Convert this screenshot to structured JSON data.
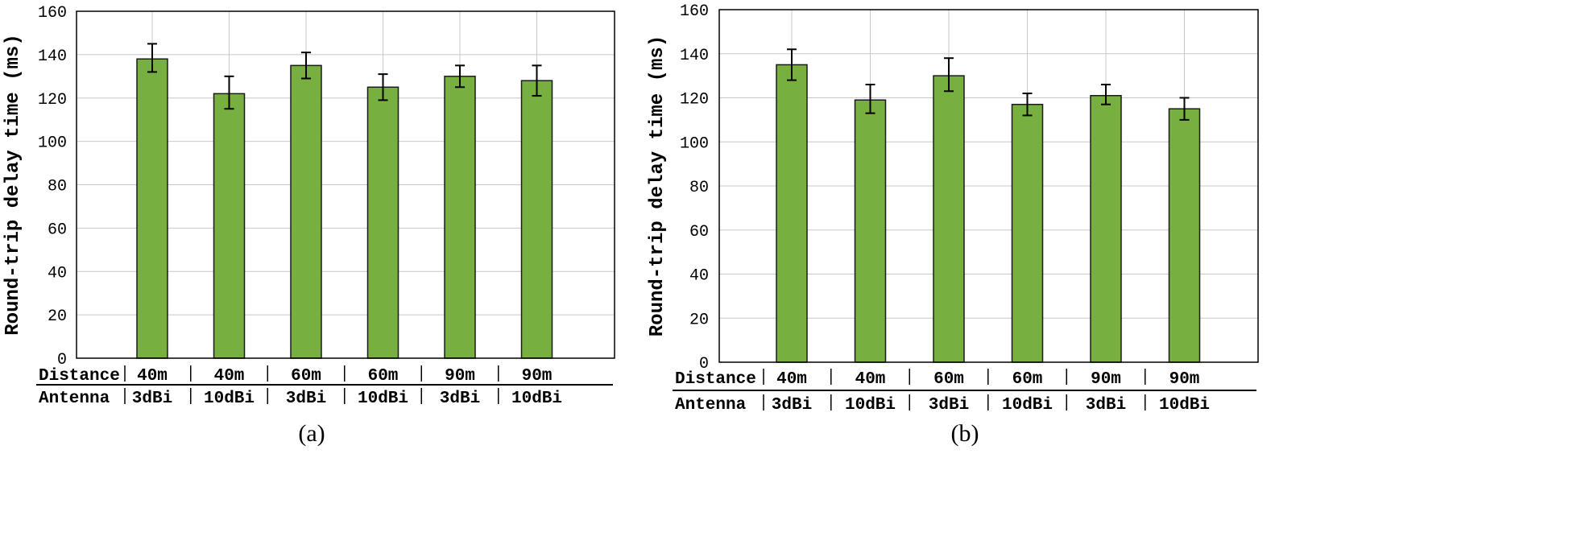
{
  "chart_data": [
    {
      "type": "bar",
      "caption": "(a)",
      "ylabel": "Round-trip delay time (ms)",
      "ylim": [
        0,
        160
      ],
      "yticks": [
        "0",
        "20",
        "40",
        "60",
        "80",
        "100",
        "120",
        "140",
        "160"
      ],
      "row_labels": [
        "Distance",
        "Antenna"
      ],
      "distance": [
        "40m",
        "40m",
        "60m",
        "60m",
        "90m",
        "90m"
      ],
      "antenna": [
        "3dBi",
        "10dBi",
        "3dBi",
        "10dBi",
        "3dBi",
        "10dBi"
      ],
      "values": [
        138,
        122,
        135,
        125,
        130,
        128
      ],
      "err_low": [
        132,
        115,
        129,
        119,
        125,
        121
      ],
      "err_high": [
        145,
        130,
        141,
        131,
        135,
        135
      ],
      "bar_color": "#77b041"
    },
    {
      "type": "bar",
      "caption": "(b)",
      "ylabel": "Round-trip delay time (ms)",
      "ylim": [
        0,
        160
      ],
      "yticks": [
        "0",
        "20",
        "40",
        "60",
        "80",
        "100",
        "120",
        "140",
        "160"
      ],
      "row_labels": [
        "Distance",
        "Antenna"
      ],
      "distance": [
        "40m",
        "40m",
        "60m",
        "60m",
        "90m",
        "90m"
      ],
      "antenna": [
        "3dBi",
        "10dBi",
        "3dBi",
        "10dBi",
        "3dBi",
        "10dBi"
      ],
      "values": [
        135,
        119,
        130,
        117,
        121,
        115
      ],
      "err_low": [
        128,
        113,
        123,
        112,
        117,
        110
      ],
      "err_high": [
        142,
        126,
        138,
        122,
        126,
        120
      ],
      "bar_color": "#77b041"
    }
  ]
}
